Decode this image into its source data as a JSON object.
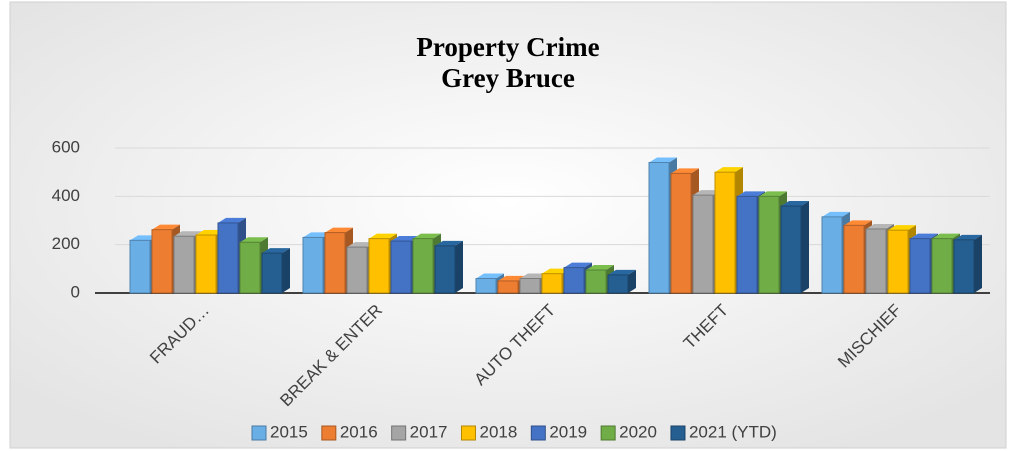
{
  "chart_data": {
    "type": "bar3d",
    "title": "Property Crime",
    "subtitle": "Grey Bruce",
    "categories": [
      "FRAUD…",
      "BREAK & ENTER",
      "AUTO THEFT",
      "THEFT",
      "MISCHIEF"
    ],
    "series": [
      {
        "name": "2015",
        "color": "#6aaee6",
        "values": [
          218,
          230,
          60,
          540,
          315
        ]
      },
      {
        "name": "2016",
        "color": "#ed7d31",
        "values": [
          262,
          250,
          50,
          495,
          280
        ]
      },
      {
        "name": "2017",
        "color": "#a5a5a5",
        "values": [
          235,
          190,
          60,
          405,
          265
        ]
      },
      {
        "name": "2018",
        "color": "#ffc000",
        "values": [
          240,
          225,
          80,
          500,
          260
        ]
      },
      {
        "name": "2019",
        "color": "#4472c4",
        "values": [
          290,
          215,
          105,
          400,
          225
        ]
      },
      {
        "name": "2020",
        "color": "#70ad47",
        "values": [
          210,
          225,
          95,
          400,
          225
        ]
      },
      {
        "name": "2021 (YTD)",
        "color": "#255e91",
        "values": [
          165,
          195,
          75,
          360,
          220
        ]
      }
    ],
    "ylim": [
      0,
      600
    ],
    "yticks": [
      0,
      200,
      400,
      600
    ],
    "grid": true,
    "legend": "bottom"
  }
}
